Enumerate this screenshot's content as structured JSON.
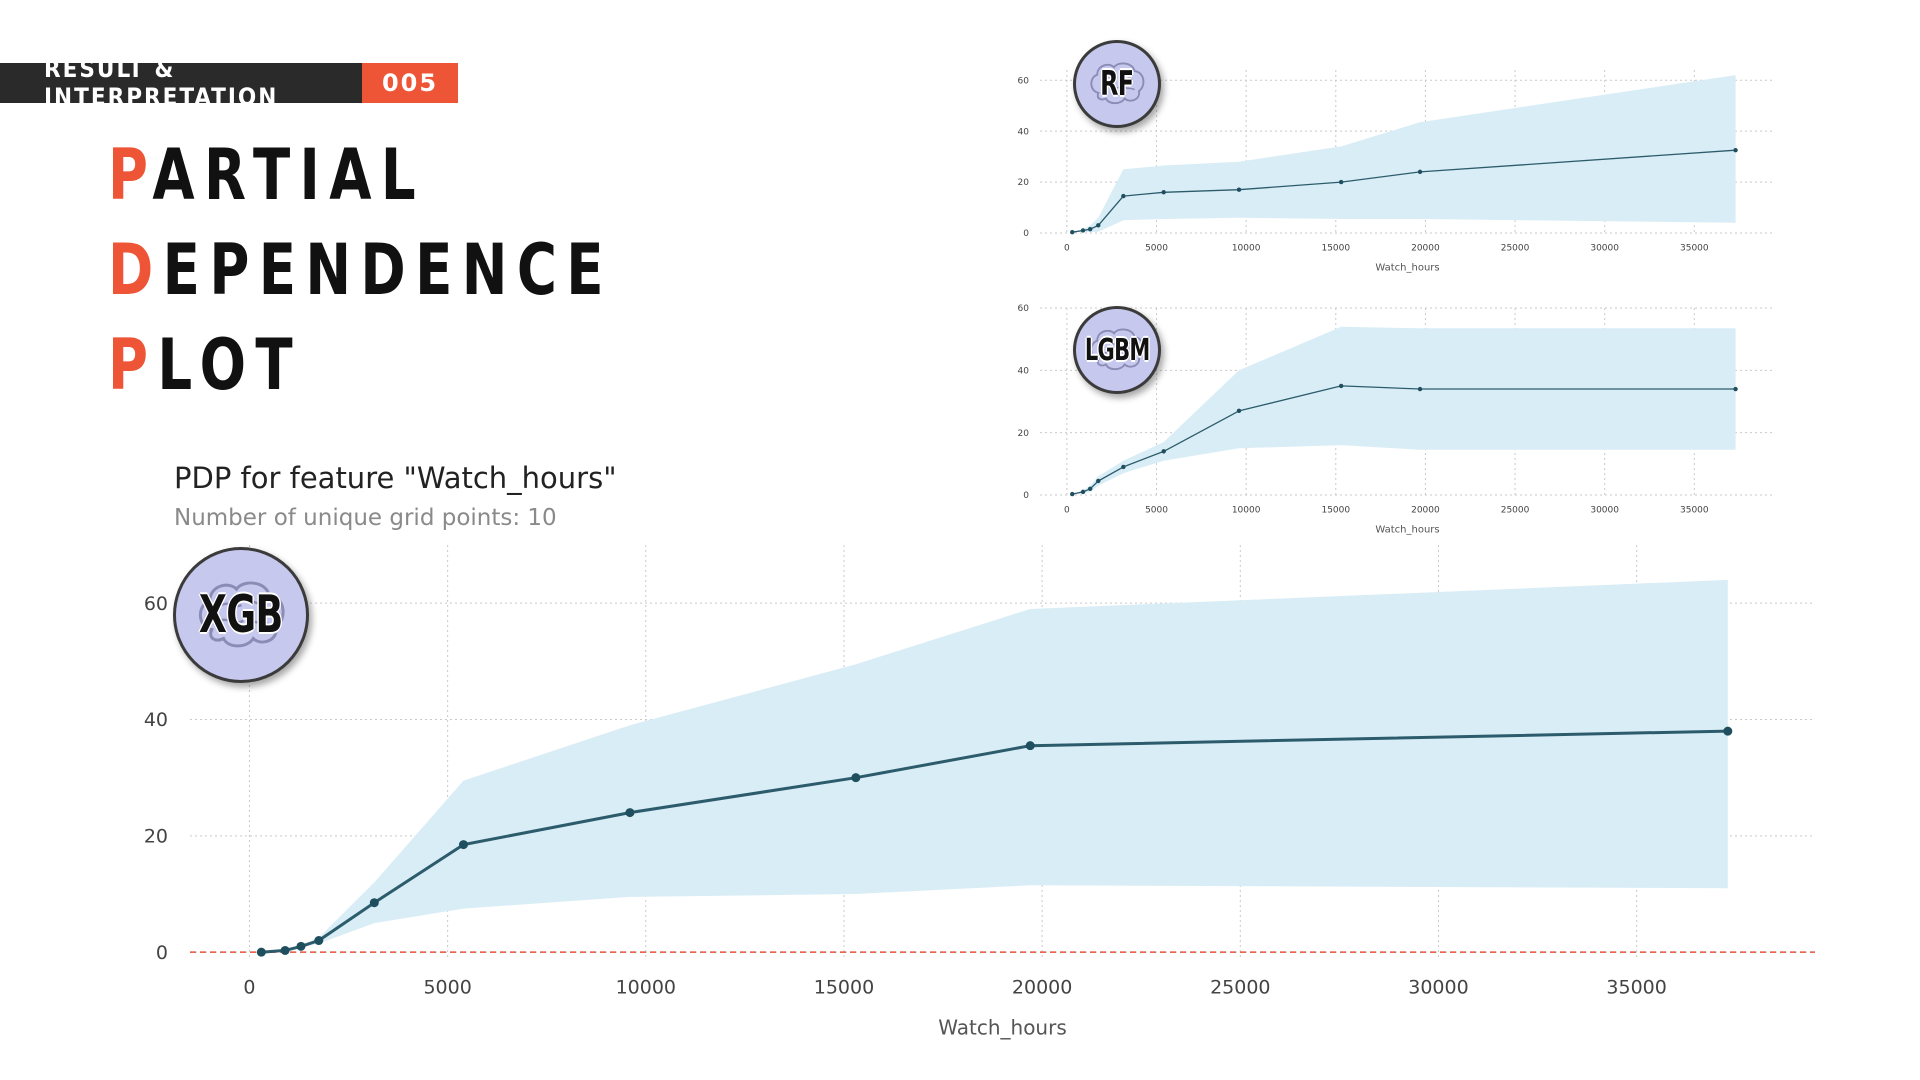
{
  "header": {
    "label": "RESULT & INTERPRETATION",
    "number": "005"
  },
  "title": {
    "lines": [
      {
        "first": "P",
        "rest": "ARTIAL"
      },
      {
        "first": "D",
        "rest": "EPENDENCE"
      },
      {
        "first": "P",
        "rest": "LOT"
      }
    ]
  },
  "colors": {
    "accent": "#ee5436",
    "dark_bar": "#2a2a2a",
    "band": "#d9edf6",
    "line": "#2c5c6c",
    "zero_line": "#e0533d",
    "badge_fill": "#c6c8ee"
  },
  "chart_data": [
    {
      "id": "rf",
      "type": "line",
      "badge": "RF",
      "icon": "brain-icon",
      "title": "",
      "subtitle": "",
      "xlabel": "Watch_hours",
      "ylabel": "",
      "xlim": [
        -1500,
        39500
      ],
      "ylim": [
        0,
        64
      ],
      "xticks": [
        0,
        5000,
        10000,
        15000,
        20000,
        25000,
        30000,
        35000
      ],
      "yticks": [
        0,
        20,
        40,
        60
      ],
      "grid": true,
      "zero_line": false,
      "x": [
        300,
        900,
        1300,
        1750,
        3150,
        5400,
        9600,
        15300,
        19700,
        37300
      ],
      "values": [
        0.3,
        1,
        1.5,
        3,
        14.5,
        16,
        17,
        20,
        24,
        32.5
      ],
      "upper": [
        0.3,
        1.5,
        3,
        6,
        25,
        26.5,
        28,
        34,
        43.5,
        62
      ],
      "lower": [
        0.3,
        0.5,
        0.3,
        0.5,
        5,
        5.5,
        6,
        5.5,
        5.5,
        4
      ]
    },
    {
      "id": "lgbm",
      "type": "line",
      "badge": "LGBM",
      "icon": "brain-icon",
      "title": "",
      "subtitle": "",
      "xlabel": "Watch_hours",
      "ylabel": "",
      "xlim": [
        -1500,
        39500
      ],
      "ylim": [
        0,
        60
      ],
      "xticks": [
        0,
        5000,
        10000,
        15000,
        20000,
        25000,
        30000,
        35000
      ],
      "yticks": [
        0,
        20,
        40,
        60
      ],
      "grid": true,
      "zero_line": false,
      "x": [
        300,
        900,
        1300,
        1750,
        3150,
        5400,
        9600,
        15300,
        19700,
        37300
      ],
      "values": [
        0.3,
        1,
        2,
        4.5,
        9,
        14,
        27,
        35,
        34,
        34
      ],
      "upper": [
        0.3,
        1.5,
        3,
        6,
        11,
        17,
        40,
        54,
        53.5,
        53.5
      ],
      "lower": [
        0.3,
        0.5,
        1,
        3,
        7,
        11,
        15,
        16,
        14.5,
        14.5
      ]
    },
    {
      "id": "xgb",
      "type": "line",
      "badge": "XGB",
      "icon": "brain-icon",
      "title": "PDP for feature \"Watch_hours\"",
      "subtitle": "Number of unique grid points: 10",
      "xlabel": "Watch_hours",
      "ylabel": "",
      "xlim": [
        -1500,
        39500
      ],
      "ylim": [
        -1,
        70
      ],
      "xticks": [
        0,
        5000,
        10000,
        15000,
        20000,
        25000,
        30000,
        35000
      ],
      "yticks": [
        0,
        20,
        40,
        60
      ],
      "grid": true,
      "zero_line": true,
      "x": [
        300,
        900,
        1300,
        1750,
        3150,
        5400,
        9600,
        15300,
        19700,
        37300
      ],
      "values": [
        0,
        0.3,
        1,
        2,
        8.5,
        18.5,
        24,
        30,
        35.5,
        38
      ],
      "upper": [
        0,
        0.4,
        1.2,
        2.5,
        12,
        29.5,
        39,
        49.5,
        59,
        64
      ],
      "lower": [
        0,
        0.2,
        0.8,
        1.5,
        5,
        7.5,
        9.5,
        10,
        11.5,
        11
      ]
    }
  ]
}
